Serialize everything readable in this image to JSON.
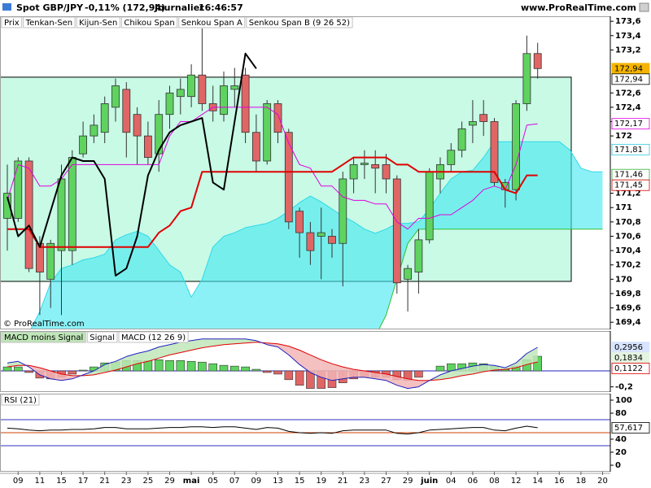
{
  "header": {
    "title": "Spot GBP/JPY",
    "change": "-0,11% (172,94)",
    "period": "Journalier",
    "time": "16:46:57",
    "site": "www.ProRealTime.com"
  },
  "watermark": "© ProRealTime.com",
  "chart_data": [
    {
      "type": "candlestick",
      "name": "Prix",
      "up_color": "#5fd35f",
      "down_color": "#e06666",
      "categories": [
        null,
        "09",
        null,
        "11",
        null,
        "15",
        null,
        "17",
        null,
        "21",
        null,
        "23",
        null,
        "25",
        null,
        "29",
        null,
        "mai",
        null,
        "05",
        null,
        "07",
        null,
        "09",
        null,
        "13",
        null,
        "15",
        null,
        "19",
        null,
        "21",
        null,
        "23",
        null,
        "27",
        null,
        "29",
        null,
        "juin",
        null,
        "04",
        null,
        "06",
        null,
        "08",
        null,
        "12",
        null,
        "14",
        null,
        "16",
        null,
        "18",
        null,
        "20"
      ],
      "open": [
        170.85,
        170.85,
        171.65,
        170.5,
        170.0,
        170.4,
        170.4,
        171.75,
        172.0,
        172.05,
        172.4,
        172.65,
        172.3,
        172.0,
        171.75,
        172.3,
        172.55,
        172.55,
        172.85,
        172.45,
        172.3,
        172.65,
        172.85,
        172.05,
        171.65,
        172.45,
        172.05,
        170.95,
        170.65,
        170.6,
        170.6,
        170.5,
        171.4,
        171.6,
        171.6,
        171.6,
        171.4,
        170.0,
        170.1,
        170.55,
        171.4,
        171.6,
        171.8,
        172.15,
        172.3,
        172.2,
        171.25,
        171.25,
        172.45,
        173.15,
        null,
        null,
        null,
        null,
        null,
        null
      ],
      "high": [
        171.6,
        171.7,
        171.7,
        170.6,
        170.55,
        171.6,
        171.8,
        172.2,
        172.3,
        172.55,
        172.8,
        172.75,
        172.4,
        172.2,
        172.5,
        172.7,
        172.8,
        173.0,
        173.5,
        172.7,
        172.9,
        172.95,
        172.95,
        172.3,
        172.5,
        172.5,
        172.1,
        171.0,
        170.8,
        171.0,
        170.7,
        171.5,
        171.7,
        171.8,
        171.8,
        171.75,
        171.45,
        170.2,
        170.7,
        171.55,
        171.7,
        171.9,
        172.2,
        172.5,
        172.5,
        172.25,
        171.4,
        172.5,
        173.4,
        173.3,
        null,
        null,
        null,
        null,
        null,
        null
      ],
      "low": [
        170.4,
        170.8,
        170.1,
        169.5,
        169.6,
        169.5,
        170.2,
        171.7,
        171.9,
        171.9,
        172.2,
        171.7,
        171.6,
        171.6,
        171.5,
        172.1,
        172.3,
        172.4,
        172.35,
        172.2,
        172.2,
        172.4,
        171.9,
        171.5,
        171.6,
        171.9,
        170.7,
        170.3,
        170.2,
        170.0,
        170.3,
        169.9,
        171.2,
        171.4,
        171.2,
        171.2,
        169.8,
        169.55,
        169.8,
        170.5,
        171.2,
        171.5,
        171.7,
        171.9,
        172.0,
        171.3,
        171.0,
        171.1,
        172.35,
        172.8,
        null,
        null,
        null,
        null,
        null,
        null
      ],
      "close": [
        171.2,
        171.65,
        170.15,
        170.1,
        170.5,
        171.4,
        171.7,
        172.0,
        172.15,
        172.45,
        172.7,
        172.05,
        172.0,
        171.7,
        172.3,
        172.6,
        172.65,
        172.85,
        172.45,
        172.35,
        172.7,
        172.7,
        172.05,
        171.65,
        172.45,
        172.05,
        170.8,
        170.65,
        170.4,
        170.65,
        170.5,
        171.4,
        171.6,
        171.62,
        171.55,
        171.4,
        169.95,
        170.15,
        170.55,
        171.5,
        171.6,
        171.8,
        172.1,
        172.2,
        172.2,
        171.35,
        171.35,
        172.45,
        173.15,
        172.94,
        null,
        null,
        null,
        null,
        null,
        null
      ],
      "series": [
        {
          "name": "Tenkan-Sen",
          "color": "#e000e0",
          "width": 1,
          "values": [
            171.1,
            171.6,
            171.55,
            171.3,
            171.3,
            171.4,
            171.6,
            171.6,
            171.6,
            171.6,
            171.6,
            171.6,
            171.6,
            171.6,
            171.6,
            172.0,
            172.2,
            172.2,
            172.3,
            172.4,
            172.4,
            172.4,
            172.4,
            172.4,
            172.4,
            172.3,
            171.9,
            171.6,
            171.55,
            171.3,
            171.3,
            171.15,
            171.1,
            171.1,
            171.05,
            171.05,
            170.8,
            170.7,
            170.85,
            170.85,
            170.9,
            170.9,
            171.0,
            171.1,
            171.25,
            171.3,
            171.25,
            171.6,
            172.15,
            172.17,
            null,
            null,
            null,
            null,
            null,
            null
          ]
        },
        {
          "name": "Kijun-Sen",
          "color": "#e00000",
          "width": 2,
          "values": [
            170.7,
            170.7,
            170.7,
            170.45,
            170.45,
            170.45,
            170.45,
            170.45,
            170.45,
            170.45,
            170.45,
            170.45,
            170.45,
            170.45,
            170.65,
            170.75,
            170.95,
            171.0,
            171.5,
            171.5,
            171.5,
            171.5,
            171.5,
            171.5,
            171.5,
            171.5,
            171.5,
            171.5,
            171.5,
            171.5,
            171.5,
            171.6,
            171.7,
            171.7,
            171.7,
            171.7,
            171.6,
            171.6,
            171.5,
            171.5,
            171.5,
            171.5,
            171.5,
            171.5,
            171.5,
            171.5,
            171.25,
            171.2,
            171.45,
            171.45,
            null,
            null,
            null,
            null,
            null,
            null
          ]
        },
        {
          "name": "Chikou Span",
          "color": "#000000",
          "width": 2,
          "values": [
            171.15,
            170.6,
            170.75,
            170.45,
            170.95,
            171.45,
            171.7,
            171.65,
            171.65,
            171.4,
            170.05,
            170.15,
            170.6,
            171.45,
            171.8,
            172.05,
            172.15,
            172.2,
            172.25,
            171.35,
            171.25,
            172.2,
            173.15,
            172.94,
            null,
            null,
            null,
            null,
            null,
            null,
            null,
            null,
            null,
            null,
            null,
            null,
            null,
            null,
            null,
            null,
            null,
            null,
            null,
            null,
            null,
            null,
            null,
            null,
            null,
            null,
            null,
            null,
            null,
            null,
            null,
            null
          ]
        },
        {
          "name": "Senkou Span A",
          "color": "#30d8e8",
          "width": 1,
          "fill": "#40e8f0",
          "values": [
            169.2,
            169.2,
            169.25,
            169.55,
            169.95,
            170.15,
            170.2,
            170.27,
            170.3,
            170.35,
            170.55,
            170.62,
            170.67,
            170.6,
            170.4,
            170.2,
            170.1,
            169.75,
            170.0,
            170.45,
            170.6,
            170.65,
            170.72,
            170.75,
            170.78,
            170.85,
            170.95,
            171.07,
            171.16,
            171.08,
            170.98,
            170.88,
            170.8,
            170.7,
            170.64,
            170.7,
            170.78,
            170.78,
            170.8,
            170.98,
            171.2,
            171.4,
            171.5,
            171.52,
            171.7,
            171.92,
            171.92,
            171.92,
            171.92,
            171.92,
            171.92,
            171.92,
            171.8,
            171.55,
            171.5,
            171.5
          ]
        },
        {
          "name": "Senkou Span B (9 26 52)",
          "color": "#30c030",
          "width": 1,
          "values": [
            169.2,
            169.2,
            169.2,
            169.2,
            169.2,
            169.2,
            169.2,
            169.2,
            169.2,
            169.2,
            169.2,
            169.2,
            169.2,
            169.2,
            169.2,
            169.2,
            169.2,
            169.2,
            169.2,
            169.2,
            169.2,
            169.2,
            169.2,
            169.2,
            169.2,
            169.2,
            169.2,
            169.2,
            169.2,
            169.2,
            169.2,
            169.2,
            169.2,
            169.2,
            169.2,
            169.5,
            170.0,
            170.5,
            170.7,
            170.7,
            170.7,
            170.7,
            170.7,
            170.7,
            170.7,
            170.7,
            170.7,
            170.7,
            170.7,
            170.7,
            170.7,
            170.7,
            170.7,
            170.7,
            170.7,
            170.7
          ]
        }
      ],
      "zone": {
        "top": 172.82,
        "bottom": 169.97,
        "color": "#c8fae6"
      },
      "ylim": [
        169.3,
        173.67
      ],
      "yticks": [
        {
          "value": 173.6,
          "label": "173,6"
        },
        {
          "value": 173.4,
          "label": "173,4"
        },
        {
          "value": 173.2,
          "label": "173,2"
        },
        {
          "value": 172.6,
          "label": "172,6"
        },
        {
          "value": 172.4,
          "label": "172,4"
        },
        {
          "value": 172.2,
          "label": "172,2"
        },
        172,
        {
          "value": 171.2,
          "label": "171,2"
        },
        171,
        {
          "value": 170.8,
          "label": "170,8"
        },
        {
          "value": 170.6,
          "label": "170,6"
        },
        {
          "value": 170.4,
          "label": "170,4"
        },
        {
          "value": 170.2,
          "label": "170,2"
        },
        170,
        {
          "value": 169.8,
          "label": "169,8"
        },
        {
          "value": 169.6,
          "label": "169,6"
        },
        {
          "value": 169.4,
          "label": "169,4"
        }
      ],
      "tags": [
        {
          "value": 172.94,
          "label": "172,94",
          "color": "#000000",
          "fill": "#f5b400"
        },
        {
          "value": 172.94,
          "label": "172,94",
          "color": "#000000"
        },
        {
          "value": 172.17,
          "label": "172,17",
          "color": "#e000e0"
        },
        {
          "value": 171.81,
          "label": "171,81",
          "color": "#30c8e0"
        },
        {
          "value": 171.46,
          "label": "171,46",
          "color": "#30b030"
        },
        {
          "value": 171.45,
          "label": "171,45",
          "color": "#e00000"
        }
      ]
    },
    {
      "type": "macd",
      "series": [
        {
          "name": "MACD moins Signal",
          "color": "#5fd35f",
          "negative_color": "#e06666",
          "values": [
            0.05,
            0.05,
            -0.02,
            -0.09,
            -0.1,
            -0.08,
            -0.04,
            0.01,
            0.05,
            0.1,
            0.11,
            0.13,
            0.13,
            0.13,
            0.14,
            0.13,
            0.13,
            0.12,
            0.11,
            0.09,
            0.07,
            0.06,
            0.05,
            0.02,
            -0.02,
            -0.04,
            -0.11,
            -0.18,
            -0.22,
            -0.22,
            -0.21,
            -0.15,
            -0.1,
            -0.08,
            -0.08,
            -0.08,
            -0.11,
            -0.12,
            -0.08,
            0.0,
            0.06,
            0.09,
            0.09,
            0.1,
            0.09,
            0.06,
            0.02,
            0.06,
            0.14,
            0.1834,
            null,
            null,
            null,
            null,
            null,
            null
          ]
        },
        {
          "name": "Signal",
          "color": "#e00000",
          "values": [
            0.05,
            0.07,
            0.07,
            0.04,
            0.0,
            -0.04,
            -0.06,
            -0.06,
            -0.05,
            -0.02,
            0.01,
            0.05,
            0.09,
            0.12,
            0.16,
            0.2,
            0.23,
            0.26,
            0.29,
            0.31,
            0.33,
            0.34,
            0.35,
            0.36,
            0.35,
            0.34,
            0.31,
            0.26,
            0.2,
            0.14,
            0.09,
            0.05,
            0.02,
            0.0,
            -0.02,
            -0.04,
            -0.07,
            -0.1,
            -0.12,
            -0.12,
            -0.11,
            -0.09,
            -0.06,
            -0.04,
            -0.01,
            0.01,
            0.02,
            0.04,
            0.08,
            0.1122,
            null,
            null,
            null,
            null,
            null,
            null
          ]
        },
        {
          "name": "MACD (12 26 9)",
          "color": "#2020c0",
          "values": [
            0.1,
            0.12,
            0.05,
            -0.05,
            -0.1,
            -0.12,
            -0.1,
            -0.05,
            0.0,
            0.08,
            0.12,
            0.18,
            0.22,
            0.25,
            0.3,
            0.33,
            0.36,
            0.38,
            0.4,
            0.4,
            0.4,
            0.4,
            0.4,
            0.38,
            0.33,
            0.3,
            0.2,
            0.08,
            -0.02,
            -0.08,
            -0.12,
            -0.1,
            -0.08,
            -0.08,
            -0.1,
            -0.12,
            -0.18,
            -0.22,
            -0.2,
            -0.12,
            -0.05,
            0.0,
            0.03,
            0.06,
            0.08,
            0.07,
            0.04,
            0.1,
            0.22,
            0.2956,
            null,
            null,
            null,
            null,
            null,
            null
          ]
        }
      ],
      "band_colors": [
        "#bfe6b8",
        "#f2b5b5"
      ],
      "levels": [
        {
          "value": 0,
          "color": "#2020c0"
        }
      ],
      "ylim": [
        -0.265,
        0.5
      ],
      "yticks": [
        {
          "value": -0.2,
          "label": "-0,2"
        }
      ],
      "tags": [
        {
          "value": 0.2956,
          "label": "0,2956",
          "color": "#2020c0",
          "fill": "#d8e4ff"
        },
        {
          "value": 0.1834,
          "label": "0,1834",
          "color": "#606060",
          "fill": "#e4f4e0"
        },
        {
          "value": 0.1122,
          "label": "0,1122",
          "color": "#e00000"
        }
      ]
    },
    {
      "type": "line",
      "series": [
        {
          "name": "RSI (21)",
          "color": "#000000",
          "values": [
            57,
            56,
            54,
            53,
            54,
            54,
            55,
            55,
            56,
            58,
            58,
            56,
            56,
            56,
            57,
            58,
            58,
            59,
            59,
            58,
            59,
            59,
            57,
            55,
            58,
            57,
            52,
            50,
            49,
            50,
            49,
            53,
            54,
            54,
            54,
            54,
            49,
            48,
            50,
            54,
            55,
            56,
            57,
            58,
            58,
            54,
            53,
            57,
            60,
            57.617,
            null,
            null,
            null,
            null,
            null,
            null
          ]
        }
      ],
      "levels": [
        {
          "value": 70,
          "color": "#3030c0"
        },
        {
          "value": 50,
          "color": "#d04000"
        },
        {
          "value": 30,
          "color": "#3030c0"
        }
      ],
      "ylim": [
        -10,
        110
      ],
      "yticks": [
        100,
        80,
        40,
        20,
        0
      ],
      "tags": [
        {
          "value": 57.617,
          "label": "57,617",
          "color": "#000000"
        }
      ]
    }
  ]
}
